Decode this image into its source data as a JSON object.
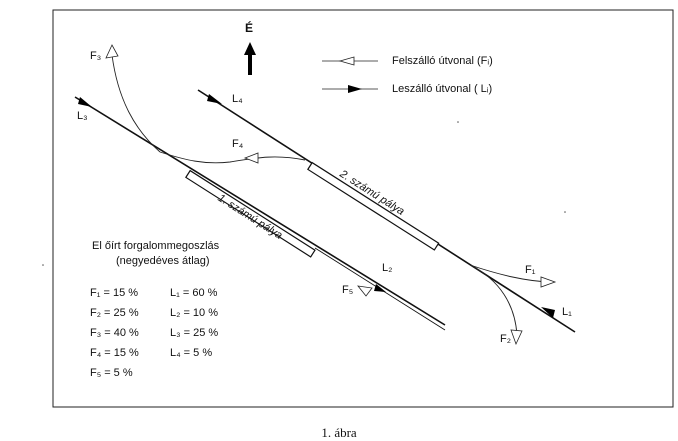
{
  "north_label": "É",
  "legend": {
    "takeoff": "Felszálló útvonal (Fᵢ)",
    "landing": "Leszálló útvonal ( Lᵢ)"
  },
  "runways": {
    "r1": "1. számú pálya",
    "r2": "2. számú pálya"
  },
  "route_labels": {
    "F1": "F₁",
    "F2": "F₂",
    "F3": "F₃",
    "F4": "F₄",
    "F5": "F₅",
    "L1": "L₁",
    "L2": "L₂",
    "L3": "L₃",
    "L4": "L₄"
  },
  "distribution": {
    "title_line1": "El őírt forgalommegoszlás",
    "title_line2": "(negyedéves átlag)",
    "F": [
      "F₁ = 15 %",
      "F₂ = 25 %",
      "F₃ = 40 %",
      "F₄ = 15 %",
      "F₅ = 5 %"
    ],
    "L": [
      "L₁ = 60 %",
      "L₂ = 10 %",
      "L₃ = 25 %",
      "L₄ = 5 %"
    ]
  },
  "caption": "1. ábra"
}
